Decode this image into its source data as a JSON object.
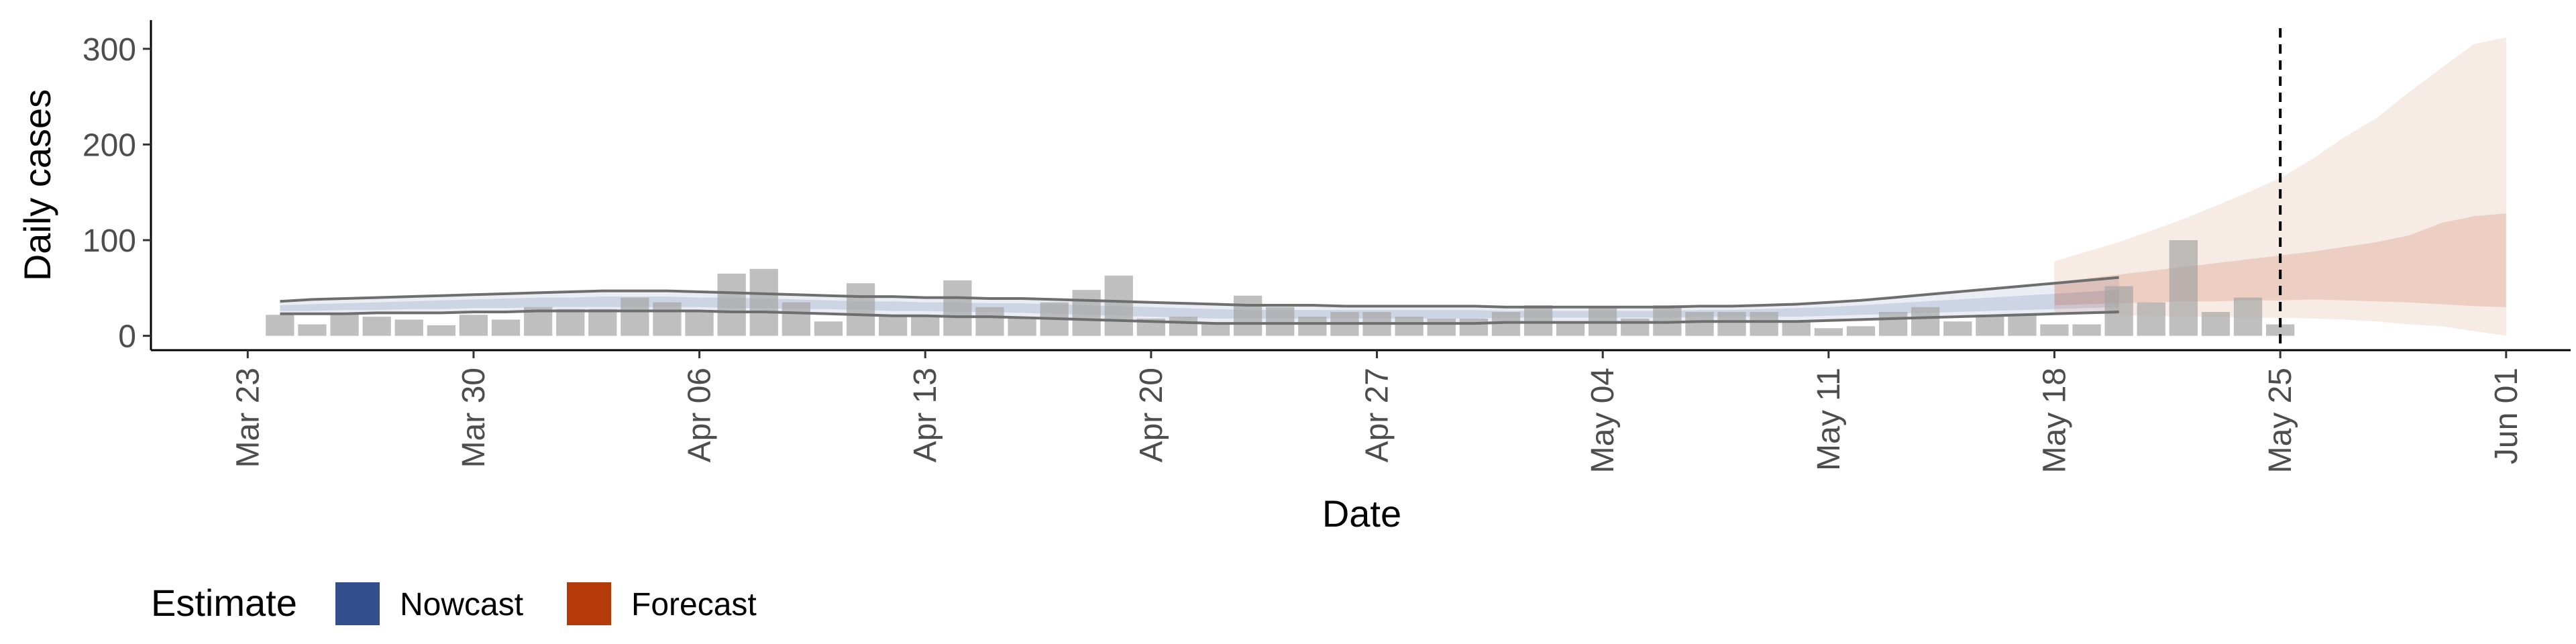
{
  "chart_data": {
    "type": "bar",
    "title": "",
    "xlabel": "Date",
    "ylabel": "Daily cases",
    "xlim": [
      "2020-03-20",
      "2020-06-03"
    ],
    "ylim": [
      -15,
      330
    ],
    "y_ticks": [
      0,
      100,
      200,
      300
    ],
    "x_ticks": [
      {
        "date": "2020-03-23",
        "label": "Mar 23"
      },
      {
        "date": "2020-03-30",
        "label": "Mar 30"
      },
      {
        "date": "2020-04-06",
        "label": "Apr 06"
      },
      {
        "date": "2020-04-13",
        "label": "Apr 13"
      },
      {
        "date": "2020-04-20",
        "label": "Apr 20"
      },
      {
        "date": "2020-04-27",
        "label": "Apr 27"
      },
      {
        "date": "2020-05-04",
        "label": "May 04"
      },
      {
        "date": "2020-05-11",
        "label": "May 11"
      },
      {
        "date": "2020-05-18",
        "label": "May 18"
      },
      {
        "date": "2020-05-25",
        "label": "May 25"
      },
      {
        "date": "2020-06-01",
        "label": "Jun 01"
      }
    ],
    "grid": false,
    "reference_line": {
      "date": "2020-05-25",
      "style": "dashed"
    },
    "bar_color": "#a6a6a6",
    "observed_cases": {
      "first_date": "2020-03-24",
      "values": [
        22,
        12,
        23,
        20,
        17,
        11,
        22,
        17,
        30,
        28,
        28,
        40,
        35,
        25,
        65,
        70,
        35,
        15,
        55,
        22,
        22,
        58,
        30,
        18,
        35,
        48,
        63,
        18,
        20,
        12,
        42,
        30,
        20,
        25,
        25,
        20,
        18,
        18,
        25,
        32,
        15,
        30,
        18,
        32,
        25,
        25,
        25,
        15,
        8,
        10,
        25,
        30,
        15,
        22,
        22,
        12,
        12,
        52,
        35,
        100,
        25,
        40,
        12
      ]
    },
    "legend": {
      "title": "Estimate",
      "position": "bottom-left",
      "entries": [
        {
          "label": "Nowcast",
          "color": "#354f8d"
        },
        {
          "label": "Forecast",
          "color": "#b53a0a"
        }
      ]
    },
    "nowcast": {
      "color": "#354f8d",
      "first_date": "2020-03-24",
      "outer_lower": [
        23,
        23,
        23,
        24,
        24,
        24,
        25,
        25,
        26,
        26,
        26,
        26,
        26,
        26,
        25,
        25,
        24,
        23,
        22,
        21,
        21,
        20,
        20,
        19,
        18,
        17,
        16,
        15,
        14,
        13,
        13,
        13,
        13,
        13,
        13,
        13,
        13,
        13,
        14,
        14,
        14,
        14,
        14,
        14,
        15,
        15,
        15,
        15,
        16,
        17,
        18,
        19,
        20,
        21,
        22,
        23,
        24,
        25
      ],
      "outer_upper": [
        36,
        38,
        39,
        40,
        41,
        42,
        43,
        44,
        45,
        46,
        47,
        47,
        47,
        46,
        45,
        44,
        43,
        42,
        41,
        41,
        40,
        40,
        39,
        39,
        38,
        37,
        36,
        35,
        34,
        33,
        32,
        32,
        32,
        31,
        31,
        31,
        31,
        31,
        30,
        30,
        30,
        30,
        30,
        30,
        31,
        31,
        32,
        33,
        35,
        37,
        40,
        43,
        46,
        49,
        52,
        55,
        58,
        61
      ],
      "inner_lower": [
        26,
        26,
        27,
        27,
        28,
        28,
        29,
        29,
        30,
        30,
        30,
        30,
        30,
        30,
        29,
        29,
        28,
        28,
        27,
        26,
        26,
        25,
        25,
        24,
        23,
        22,
        21,
        20,
        19,
        18,
        18,
        18,
        18,
        18,
        18,
        18,
        18,
        18,
        19,
        19,
        19,
        19,
        19,
        19,
        20,
        20,
        20,
        20,
        21,
        22,
        23,
        24,
        25,
        26,
        27,
        28,
        29,
        30
      ],
      "inner_upper": [
        32,
        33,
        34,
        35,
        36,
        37,
        38,
        39,
        40,
        40,
        41,
        41,
        41,
        40,
        40,
        39,
        38,
        37,
        36,
        36,
        35,
        35,
        34,
        34,
        33,
        32,
        31,
        30,
        29,
        28,
        27,
        27,
        27,
        27,
        27,
        27,
        27,
        27,
        26,
        26,
        26,
        26,
        26,
        26,
        27,
        27,
        28,
        29,
        30,
        32,
        34,
        36,
        38,
        40,
        42,
        44,
        46,
        48
      ]
    },
    "forecast": {
      "color": "#b53a0a",
      "first_date": "2020-05-18",
      "outer_lower": [
        24,
        23,
        22,
        21,
        20,
        20,
        19,
        19,
        18,
        17,
        15,
        12,
        10,
        5,
        0
      ],
      "outer_upper": [
        78,
        88,
        98,
        110,
        122,
        136,
        150,
        165,
        185,
        208,
        228,
        255,
        280,
        305,
        312
      ],
      "inner_lower": [
        32,
        33,
        34,
        35,
        36,
        36,
        37,
        37,
        38,
        37,
        36,
        35,
        33,
        31,
        30
      ],
      "inner_upper": [
        56,
        60,
        64,
        68,
        72,
        76,
        80,
        84,
        88,
        93,
        98,
        105,
        118,
        125,
        128
      ]
    }
  }
}
